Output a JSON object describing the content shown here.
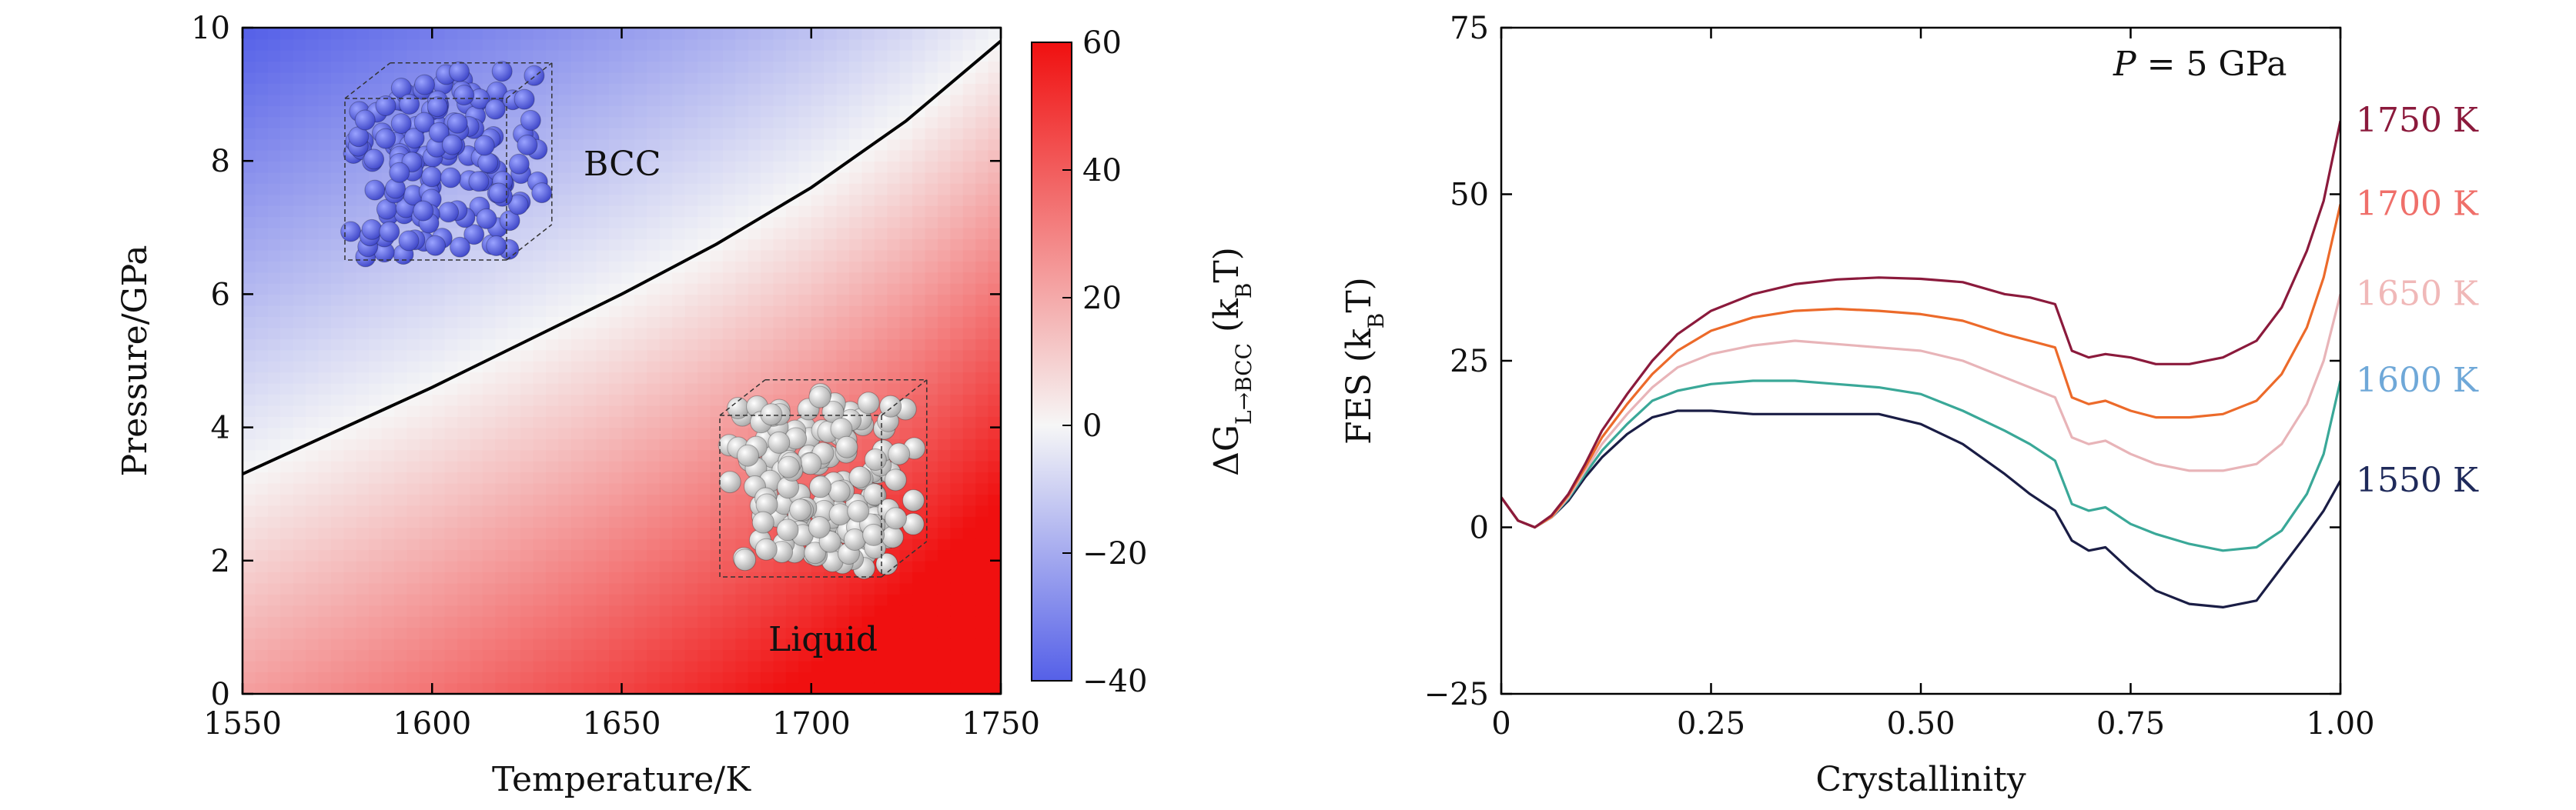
{
  "colors": {
    "bcc_blue": "#5560e8",
    "liquid_red": "#f01010",
    "neutral": "#f6f6f6",
    "boundary": "#000000",
    "bcc_atoms": "#5b63db",
    "liquid_atoms": "#d4d4d4",
    "curve_1550": "#1a1d45",
    "curve_1600": "#3aa898",
    "curve_1650": "#e8b4b8",
    "curve_1700": "#ec6a2a",
    "curve_1750": "#8b1a3c",
    "label_1550": "#1f2a5a",
    "label_1600": "#6fa8d8",
    "label_1650": "#f0b8b8",
    "label_1700": "#ef6f6a",
    "label_1750": "#8b1a3c"
  },
  "chart_data": [
    {
      "type": "heatmap",
      "title": "",
      "xlabel": "Temperature/K",
      "ylabel": "Pressure/GPa",
      "xlim": [
        1550,
        1750
      ],
      "ylim": [
        0,
        10
      ],
      "x_ticks": [
        "1550",
        "1600",
        "1650",
        "1700",
        "1750"
      ],
      "x_tick_values": [
        1550,
        1600,
        1650,
        1700,
        1750
      ],
      "y_ticks": [
        "0",
        "2",
        "4",
        "6",
        "8",
        "10"
      ],
      "y_tick_values": [
        0,
        2,
        4,
        6,
        8,
        10
      ],
      "colorbar": {
        "label": "ΔG",
        "label_sub": "L→BCC",
        "label_unit_open": " (k",
        "label_unit_sub": "B",
        "label_unit_close": "T)",
        "range": [
          -40,
          60
        ],
        "ticks": [
          "60",
          "40",
          "20",
          "0",
          "−20",
          "−40"
        ],
        "tick_values": [
          60,
          40,
          20,
          0,
          -20,
          -40
        ]
      },
      "phase_boundary": {
        "x": [
          1550,
          1575,
          1600,
          1625,
          1650,
          1675,
          1700,
          1725,
          1750
        ],
        "y": [
          3.3,
          3.95,
          4.6,
          5.3,
          6.0,
          6.75,
          7.6,
          8.6,
          9.8
        ]
      },
      "field_values": [
        {
          "x": 1550,
          "y": 10,
          "value": -40
        },
        {
          "x": 1750,
          "y": 0,
          "value": 60
        },
        {
          "x": 1550,
          "y": 3.3,
          "value": 0
        },
        {
          "x": 1750,
          "y": 9.8,
          "value": 0
        }
      ],
      "annotations": {
        "bcc": "BCC",
        "liquid": "Liquid"
      }
    },
    {
      "type": "line",
      "title": "",
      "xlabel": "Crystallinity",
      "ylabel_main": "FES (k",
      "ylabel_sub": "B",
      "ylabel_close": "T)",
      "xlim": [
        0,
        1
      ],
      "ylim": [
        -25,
        75
      ],
      "x_ticks": [
        "0",
        "0.25",
        "0.50",
        "0.75",
        "1.00"
      ],
      "x_tick_values": [
        0,
        0.25,
        0.5,
        0.75,
        1.0
      ],
      "y_ticks": [
        "−25",
        "0",
        "25",
        "50",
        "75"
      ],
      "y_tick_values": [
        -25,
        0,
        25,
        50,
        75
      ],
      "annotation": {
        "p_symbol": "P",
        "p_value": " = 5 GPa"
      },
      "x": [
        0,
        0.02,
        0.04,
        0.06,
        0.08,
        0.1,
        0.12,
        0.15,
        0.18,
        0.21,
        0.25,
        0.3,
        0.35,
        0.4,
        0.45,
        0.5,
        0.55,
        0.6,
        0.63,
        0.66,
        0.68,
        0.7,
        0.72,
        0.75,
        0.78,
        0.82,
        0.86,
        0.9,
        0.93,
        0.96,
        0.98,
        1.0
      ],
      "series": [
        {
          "name": "1550 K",
          "y": [
            4.5,
            1.0,
            0.0,
            1.5,
            4.0,
            7.5,
            10.5,
            14.0,
            16.5,
            17.5,
            17.5,
            17.0,
            17.0,
            17.0,
            17.0,
            15.5,
            12.5,
            8.0,
            5.0,
            2.5,
            -2.0,
            -3.5,
            -3.0,
            -6.5,
            -9.5,
            -11.5,
            -12.0,
            -11.0,
            -6.0,
            -1.0,
            2.5,
            7.0
          ]
        },
        {
          "name": "1600 K",
          "y": [
            4.5,
            1.0,
            0.0,
            1.5,
            4.3,
            8.0,
            11.5,
            15.5,
            19.0,
            20.5,
            21.5,
            22.0,
            22.0,
            21.5,
            21.0,
            20.0,
            17.5,
            14.5,
            12.5,
            10.0,
            3.5,
            2.5,
            3.0,
            0.5,
            -1.0,
            -2.5,
            -3.5,
            -3.0,
            -0.5,
            5.0,
            11.0,
            22.0
          ]
        },
        {
          "name": "1650 K",
          "y": [
            4.5,
            1.0,
            0.0,
            1.5,
            4.5,
            8.5,
            12.5,
            17.0,
            21.0,
            24.0,
            26.0,
            27.3,
            28.0,
            27.5,
            27.0,
            26.5,
            25.0,
            22.5,
            21.0,
            19.5,
            13.5,
            12.5,
            13.0,
            11.0,
            9.5,
            8.5,
            8.5,
            9.5,
            12.5,
            18.5,
            25.0,
            35.0
          ]
        },
        {
          "name": "1700 K",
          "y": [
            4.5,
            1.0,
            0.0,
            1.6,
            4.8,
            9.0,
            13.5,
            18.5,
            23.0,
            26.5,
            29.5,
            31.5,
            32.5,
            32.8,
            32.5,
            32.0,
            31.0,
            29.0,
            28.0,
            27.0,
            19.5,
            18.5,
            19.0,
            17.5,
            16.5,
            16.5,
            17.0,
            19.0,
            23.0,
            30.0,
            37.5,
            48.5
          ]
        },
        {
          "name": "1750 K",
          "y": [
            4.5,
            1.0,
            0.0,
            1.8,
            5.0,
            9.5,
            14.5,
            20.0,
            25.0,
            29.0,
            32.5,
            35.0,
            36.5,
            37.2,
            37.5,
            37.3,
            36.8,
            35.0,
            34.5,
            33.5,
            26.5,
            25.5,
            26.0,
            25.5,
            24.5,
            24.5,
            25.5,
            28.0,
            33.0,
            41.5,
            49.0,
            61.0
          ]
        }
      ]
    }
  ]
}
